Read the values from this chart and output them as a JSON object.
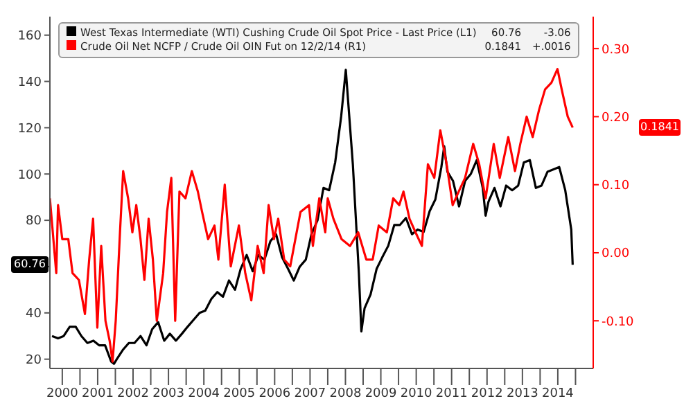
{
  "chart_data": {
    "type": "line",
    "annotations": [
      "60.76",
      "-3.06",
      "0.1841",
      "+.0016"
    ],
    "xlim": [
      2000.15,
      2015.5
    ],
    "xticks": [
      {
        "value": 2000.5,
        "label": "2000"
      },
      {
        "value": 2001,
        "label": null
      },
      {
        "value": 2001.5,
        "label": "2001"
      },
      {
        "value": 2002,
        "label": null
      },
      {
        "value": 2002.5,
        "label": "2002"
      },
      {
        "value": 2003,
        "label": null
      },
      {
        "value": 2003.5,
        "label": "2003"
      },
      {
        "value": 2004,
        "label": null
      },
      {
        "value": 2004.5,
        "label": "2004"
      },
      {
        "value": 2005,
        "label": null
      },
      {
        "value": 2005.5,
        "label": "2005"
      },
      {
        "value": 2006,
        "label": null
      },
      {
        "value": 2006.5,
        "label": "2006"
      },
      {
        "value": 2007,
        "label": null
      },
      {
        "value": 2007.5,
        "label": "2007"
      },
      {
        "value": 2008,
        "label": null
      },
      {
        "value": 2008.5,
        "label": "2008"
      },
      {
        "value": 2009,
        "label": null
      },
      {
        "value": 2009.5,
        "label": "2009"
      },
      {
        "value": 2010,
        "label": null
      },
      {
        "value": 2010.5,
        "label": "2010"
      },
      {
        "value": 2011,
        "label": null
      },
      {
        "value": 2011.5,
        "label": "2011"
      },
      {
        "value": 2012,
        "label": null
      },
      {
        "value": 2012.5,
        "label": "2012"
      },
      {
        "value": 2013,
        "label": null
      },
      {
        "value": 2013.5,
        "label": "2013"
      },
      {
        "value": 2014,
        "label": null
      },
      {
        "value": 2014.5,
        "label": "2014"
      },
      {
        "value": 2015,
        "label": null
      }
    ],
    "ylim": [
      16,
      168
    ],
    "yticks": [
      20,
      40,
      {
        "value": 60,
        "label": null
      },
      80,
      100,
      120,
      140,
      160
    ],
    "y2lim": [
      -0.17,
      0.347
    ],
    "y2ticks": [
      {
        "value": -0.1,
        "label": "-0.10"
      },
      {
        "value": 0,
        "label": "0.00"
      },
      {
        "value": 0.1,
        "label": "0.10"
      },
      {
        "value": 0.2,
        "label": "0.20"
      },
      {
        "value": 0.3,
        "label": "0.30"
      }
    ],
    "legend": "top",
    "marker": "none",
    "line_style": "solid",
    "series": [
      {
        "name": "West Texas Intermediate (WTI) Cushing Crude Oil Spot Price - Last Price (L1)",
        "color": "#000000",
        "x": [
          2000.21,
          2000.38,
          2000.54,
          2000.71,
          2000.88,
          2001.04,
          2001.21,
          2001.38,
          2001.54,
          2001.71,
          2001.88,
          2001.96,
          2002.04,
          2002.21,
          2002.38,
          2002.54,
          2002.71,
          2002.88,
          2003.04,
          2003.21,
          2003.38,
          2003.54,
          2003.71,
          2003.88,
          2004.04,
          2004.21,
          2004.38,
          2004.54,
          2004.71,
          2004.88,
          2005.04,
          2005.21,
          2005.38,
          2005.54,
          2005.71,
          2005.88,
          2006.04,
          2006.21,
          2006.38,
          2006.54,
          2006.71,
          2006.88,
          2007.04,
          2007.21,
          2007.38,
          2007.54,
          2007.71,
          2007.88,
          2008.04,
          2008.21,
          2008.38,
          2008.51,
          2008.71,
          2008.88,
          2008.95,
          2009.04,
          2009.21,
          2009.38,
          2009.54,
          2009.71,
          2009.88,
          2010.04,
          2010.21,
          2010.38,
          2010.54,
          2010.71,
          2010.88,
          2011.04,
          2011.21,
          2011.29,
          2011.38,
          2011.54,
          2011.71,
          2011.88,
          2012.04,
          2012.21,
          2012.38,
          2012.46,
          2012.54,
          2012.71,
          2012.88,
          2013.04,
          2013.21,
          2013.38,
          2013.54,
          2013.71,
          2013.88,
          2014.04,
          2014.21,
          2014.38,
          2014.54,
          2014.71,
          2014.88,
          2014.92
        ],
        "values": [
          30,
          29,
          30,
          34,
          34,
          30,
          27,
          28,
          26,
          26,
          19,
          18,
          20,
          24,
          27,
          27,
          30,
          26,
          33,
          36,
          28,
          31,
          28,
          31,
          34,
          37,
          40,
          41,
          46,
          49,
          47,
          54,
          50,
          59,
          65,
          58,
          65,
          63,
          71,
          74,
          64,
          59,
          54,
          60,
          63,
          74,
          80,
          94,
          93,
          105,
          125,
          145,
          104,
          57,
          32,
          42,
          48,
          59,
          64,
          69,
          78,
          78,
          81,
          74,
          76,
          75,
          84,
          89,
          103,
          112,
          101,
          97,
          86,
          97,
          100,
          106,
          94,
          82,
          88,
          94,
          86,
          95,
          93,
          95,
          105,
          106,
          94,
          95,
          101,
          102,
          103,
          93,
          76,
          60.76
        ]
      },
      {
        "name": "Crude Oil Net NCFP / Crude Oil OIN Fut on 12/2/14 (R1)",
        "color": "#ff0000",
        "axis": "y2",
        "x": [
          2000.15,
          2000.33,
          2000.38,
          2000.5,
          2000.67,
          2000.79,
          2000.97,
          2001.14,
          2001.26,
          2001.37,
          2001.49,
          2001.6,
          2001.72,
          2001.84,
          2001.92,
          2002.01,
          2002.13,
          2002.22,
          2002.36,
          2002.48,
          2002.59,
          2002.71,
          2002.82,
          2002.94,
          2003.06,
          2003.17,
          2003.35,
          2003.46,
          2003.58,
          2003.69,
          2003.81,
          2003.98,
          2004.16,
          2004.33,
          2004.45,
          2004.62,
          2004.8,
          2004.91,
          2005.09,
          2005.26,
          2005.49,
          2005.67,
          2005.84,
          2006.02,
          2006.19,
          2006.33,
          2006.48,
          2006.6,
          2006.77,
          2006.94,
          2007.23,
          2007.47,
          2007.58,
          2007.76,
          2007.93,
          2008.0,
          2008.16,
          2008.39,
          2008.63,
          2008.86,
          2009.09,
          2009.27,
          2009.44,
          2009.67,
          2009.85,
          2010.02,
          2010.14,
          2010.31,
          2010.48,
          2010.66,
          2010.83,
          2011.01,
          2011.18,
          2011.36,
          2011.53,
          2011.7,
          2011.88,
          2012.11,
          2012.28,
          2012.46,
          2012.69,
          2012.86,
          2013.1,
          2013.29,
          2013.44,
          2013.62,
          2013.79,
          2013.97,
          2014.14,
          2014.32,
          2014.49,
          2014.61,
          2014.78,
          2014.92
        ],
        "values": [
          0.08,
          -0.03,
          0.07,
          0.02,
          0.02,
          -0.03,
          -0.04,
          -0.09,
          -0.01,
          0.05,
          -0.11,
          0.01,
          -0.1,
          -0.13,
          -0.16,
          -0.1,
          0.03,
          0.12,
          0.08,
          0.03,
          0.07,
          0.02,
          -0.04,
          0.05,
          -0.01,
          -0.1,
          -0.03,
          0.06,
          0.11,
          -0.1,
          0.09,
          0.08,
          0.12,
          0.09,
          0.06,
          0.02,
          0.04,
          -0.01,
          0.1,
          -0.02,
          0.04,
          -0.03,
          -0.07,
          0.01,
          -0.03,
          0.07,
          0.02,
          0.05,
          -0.01,
          -0.02,
          0.06,
          0.07,
          0.01,
          0.08,
          0.03,
          0.08,
          0.05,
          0.02,
          0.01,
          0.03,
          -0.01,
          -0.01,
          0.04,
          0.03,
          0.08,
          0.07,
          0.09,
          0.05,
          0.03,
          0.01,
          0.13,
          0.11,
          0.18,
          0.13,
          0.07,
          0.09,
          0.11,
          0.16,
          0.13,
          0.08,
          0.16,
          0.11,
          0.17,
          0.12,
          0.16,
          0.2,
          0.17,
          0.21,
          0.24,
          0.25,
          0.27,
          0.24,
          0.2,
          0.1841
        ]
      }
    ]
  }
}
